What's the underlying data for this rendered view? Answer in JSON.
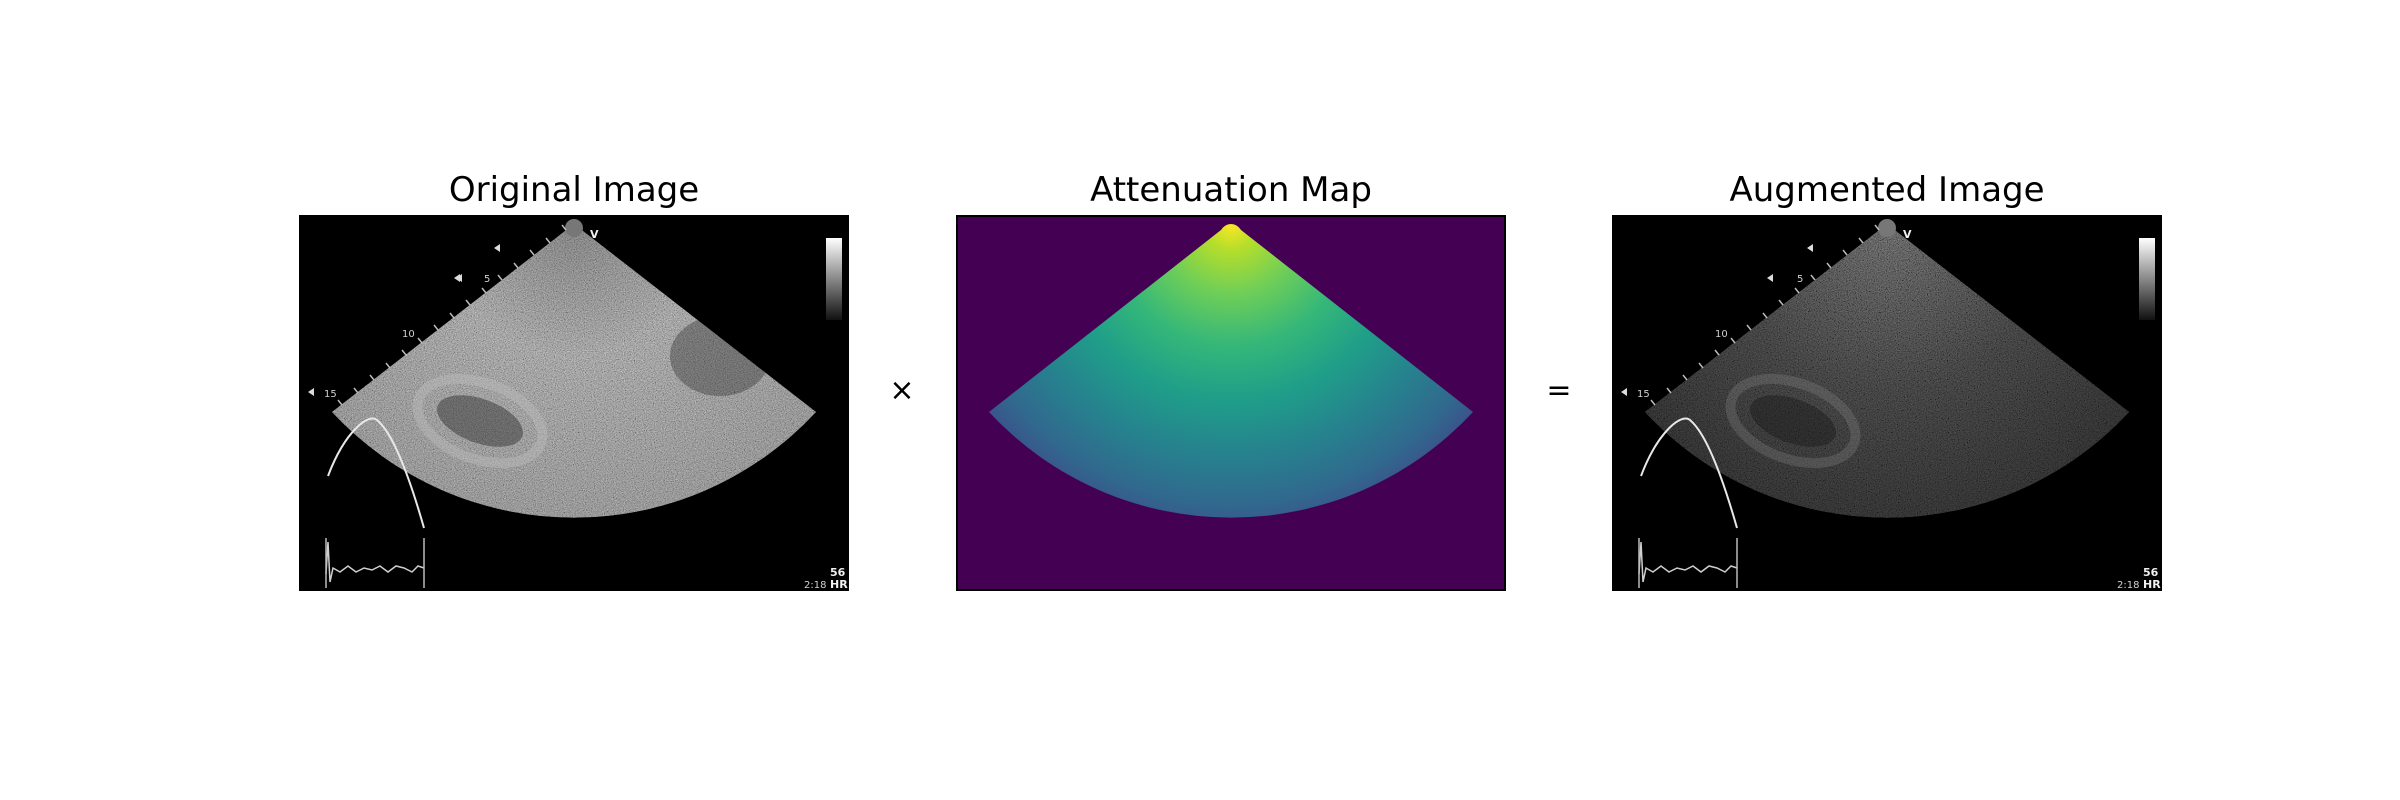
{
  "panels": [
    {
      "title": "Original Image",
      "overlay": {
        "v_mark": "V",
        "depth_labels": [
          "5",
          "10",
          "15"
        ],
        "hr_value": "56",
        "hr_label": "HR",
        "time": "2:18"
      }
    },
    {
      "title": "Attenuation Map",
      "colors": {
        "background": "#440154",
        "apex": "#e8e419",
        "mid": "#21918c",
        "far": "#3b528b"
      }
    },
    {
      "title": "Augmented Image",
      "overlay": {
        "v_mark": "V",
        "depth_labels": [
          "5",
          "10",
          "15"
        ],
        "hr_value": "56",
        "hr_label": "HR",
        "time": "2:18"
      }
    }
  ],
  "operators": {
    "multiply": "×",
    "equals": "="
  }
}
